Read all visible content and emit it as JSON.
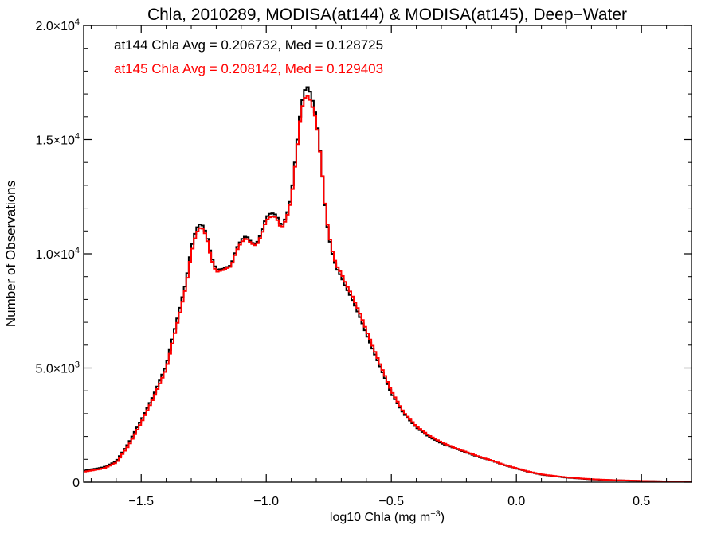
{
  "chart_data": {
    "type": "line",
    "title": "Chla, 2010289, MODISA(at144) & MODISA(at145), Deep−Water",
    "xlabel": {
      "main": "log10 Chla (mg m",
      "sup": "−3",
      "close": ")"
    },
    "ylabel": "Number of Observations",
    "xlim": [
      -1.73,
      0.7
    ],
    "ylim": [
      0,
      20000
    ],
    "x_ticks": [
      {
        "value": -1.5,
        "label": "−1.5"
      },
      {
        "value": -1.0,
        "label": "−1.0"
      },
      {
        "value": -0.5,
        "label": "−0.5"
      },
      {
        "value": 0.0,
        "label": "0.0"
      },
      {
        "value": 0.5,
        "label": "0.5"
      }
    ],
    "y_ticks": [
      {
        "value": 0,
        "label": "0",
        "sup": ""
      },
      {
        "value": 5000,
        "label": "5.0×10",
        "sup": "3"
      },
      {
        "value": 10000,
        "label": "1.0×10",
        "sup": "4"
      },
      {
        "value": 15000,
        "label": "1.5×10",
        "sup": "4"
      },
      {
        "value": 20000,
        "label": "2.0×10",
        "sup": "4"
      }
    ],
    "annotations": [
      {
        "text": "at144 Chla Avg = 0.206732, Med = 0.128725",
        "color": "#000000"
      },
      {
        "text": "at145 Chla Avg = 0.208142, Med = 0.129403",
        "color": "#ff0000"
      }
    ],
    "series": [
      {
        "color": "#000000",
        "x": [
          -1.73,
          -1.65,
          -1.6,
          -1.55,
          -1.5,
          -1.45,
          -1.4,
          -1.35,
          -1.32,
          -1.3,
          -1.28,
          -1.26,
          -1.24,
          -1.22,
          -1.2,
          -1.17,
          -1.14,
          -1.12,
          -1.1,
          -1.08,
          -1.06,
          -1.04,
          -1.02,
          -1.0,
          -0.98,
          -0.96,
          -0.94,
          -0.92,
          -0.9,
          -0.88,
          -0.86,
          -0.84,
          -0.82,
          -0.81,
          -0.8,
          -0.78,
          -0.76,
          -0.74,
          -0.72,
          -0.7,
          -0.68,
          -0.66,
          -0.64,
          -0.62,
          -0.6,
          -0.55,
          -0.5,
          -0.45,
          -0.4,
          -0.35,
          -0.3,
          -0.25,
          -0.2,
          -0.15,
          -0.1,
          -0.05,
          0.0,
          0.05,
          0.1,
          0.2,
          0.3,
          0.4,
          0.5,
          0.6,
          0.7
        ],
        "y": [
          500,
          650,
          900,
          1700,
          2700,
          3800,
          5100,
          7400,
          8800,
          10200,
          11100,
          11350,
          10900,
          9900,
          9300,
          9350,
          9500,
          10200,
          10600,
          10800,
          10500,
          10400,
          10900,
          11600,
          11800,
          11700,
          11200,
          11600,
          12500,
          14500,
          16500,
          17400,
          17000,
          16400,
          16000,
          14000,
          11500,
          10200,
          9400,
          9000,
          8500,
          8100,
          7600,
          7100,
          6500,
          5200,
          3900,
          3000,
          2400,
          2000,
          1700,
          1500,
          1300,
          1100,
          950,
          750,
          600,
          450,
          330,
          200,
          120,
          80,
          50,
          30,
          20
        ]
      },
      {
        "color": "#ff0000",
        "x": [
          -1.73,
          -1.65,
          -1.6,
          -1.55,
          -1.5,
          -1.45,
          -1.4,
          -1.35,
          -1.32,
          -1.3,
          -1.28,
          -1.26,
          -1.24,
          -1.22,
          -1.2,
          -1.17,
          -1.14,
          -1.12,
          -1.1,
          -1.08,
          -1.06,
          -1.04,
          -1.02,
          -1.0,
          -0.98,
          -0.96,
          -0.94,
          -0.92,
          -0.9,
          -0.88,
          -0.86,
          -0.84,
          -0.82,
          -0.81,
          -0.8,
          -0.78,
          -0.76,
          -0.74,
          -0.72,
          -0.7,
          -0.68,
          -0.66,
          -0.64,
          -0.62,
          -0.6,
          -0.55,
          -0.5,
          -0.45,
          -0.4,
          -0.35,
          -0.3,
          -0.25,
          -0.2,
          -0.15,
          -0.1,
          -0.05,
          0.0,
          0.05,
          0.1,
          0.2,
          0.3,
          0.4,
          0.5,
          0.6,
          0.7
        ],
        "y": [
          450,
          600,
          850,
          1600,
          2600,
          3700,
          4950,
          7200,
          8600,
          10000,
          10900,
          11200,
          10800,
          9800,
          9200,
          9300,
          9450,
          10100,
          10500,
          10700,
          10450,
          10350,
          10800,
          11450,
          11650,
          11600,
          11100,
          11500,
          12350,
          14300,
          16300,
          17000,
          16650,
          16200,
          15900,
          14000,
          11600,
          10300,
          9500,
          9150,
          8650,
          8250,
          7750,
          7250,
          6650,
          5300,
          4000,
          3050,
          2450,
          2050,
          1750,
          1520,
          1320,
          1120,
          960,
          760,
          610,
          460,
          340,
          210,
          130,
          85,
          55,
          32,
          22
        ]
      }
    ]
  }
}
